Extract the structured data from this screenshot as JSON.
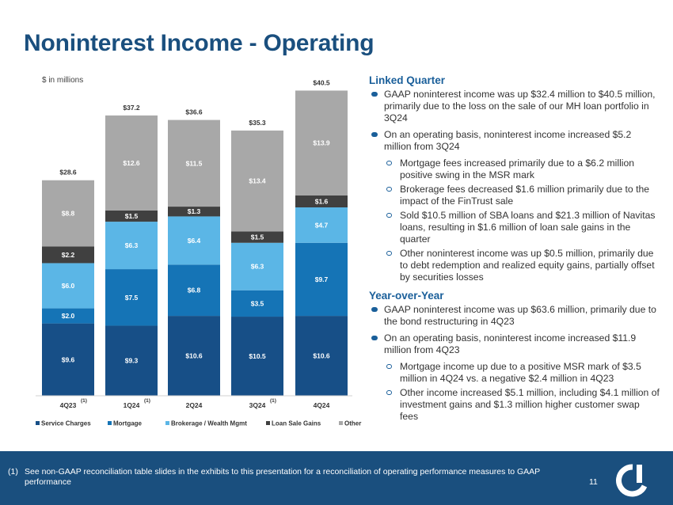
{
  "title": "Noninterest Income - Operating",
  "chart_data": {
    "type": "bar",
    "stacked": true,
    "units_label": "$ in millions",
    "categories": [
      "4Q23",
      "1Q24",
      "2Q24",
      "3Q24",
      "4Q24"
    ],
    "category_notes": [
      "(1)",
      "(1)",
      "",
      "(1)",
      ""
    ],
    "totals": [
      "$28.6",
      "$37.2",
      "$36.6",
      "$35.3",
      "$40.5"
    ],
    "series": [
      {
        "name": "Service Charges",
        "color": "#174f87",
        "values": [
          9.6,
          9.3,
          10.6,
          10.5,
          10.6
        ],
        "labels": [
          "$9.6",
          "$9.3",
          "$10.6",
          "$10.5",
          "$10.6"
        ],
        "label_color": "#ffffff"
      },
      {
        "name": "Mortgage",
        "color": "#1574b6",
        "values": [
          2.0,
          7.5,
          6.8,
          3.5,
          9.7
        ],
        "labels": [
          "$2.0",
          "$7.5",
          "$6.8",
          "$3.5",
          "$9.7"
        ],
        "label_color": "#ffffff"
      },
      {
        "name": "Brokerage / Wealth Mgmt",
        "color": "#5bb6e6",
        "values": [
          6.0,
          6.3,
          6.4,
          6.3,
          4.7
        ],
        "labels": [
          "$6.0",
          "$6.3",
          "$6.4",
          "$6.3",
          "$4.7"
        ],
        "label_color": "#ffffff"
      },
      {
        "name": "Loan Sale Gains",
        "color": "#404040",
        "values": [
          2.2,
          1.5,
          1.3,
          1.5,
          1.6
        ],
        "labels": [
          "$2.2",
          "$1.5",
          "$1.3",
          "$1.5",
          "$1.6"
        ],
        "label_color": "#ffffff"
      },
      {
        "name": "Other",
        "color": "#a8a8a8",
        "values": [
          8.8,
          12.6,
          11.5,
          13.4,
          13.9
        ],
        "labels": [
          "$8.8",
          "$12.6",
          "$11.5",
          "$13.4",
          "$13.9"
        ],
        "label_color": "#ffffff"
      }
    ],
    "legend_position": "bottom",
    "grid": false
  },
  "commentary": {
    "linked_quarter": {
      "heading": "Linked Quarter",
      "b1": "GAAP noninterest income was up $32.4 million to $40.5 million, primarily due to the loss on the sale of our MH loan portfolio in 3Q24",
      "b2": "On an operating basis, noninterest income increased $5.2 million from 3Q24",
      "b2_s1": "Mortgage fees increased primarily due to a $6.2 million positive swing in the MSR mark",
      "b2_s2": "Brokerage fees decreased $1.6 million primarily due to the impact of the FinTrust sale",
      "b2_s3": "Sold $10.5 million of SBA loans and $21.3 million of Navitas loans, resulting in $1.6 million of loan sale gains in the quarter",
      "b2_s4": "Other noninterest income was up $0.5 million, primarily due to debt redemption and realized equity gains, partially offset by securities losses"
    },
    "year_over_year": {
      "heading": "Year-over-Year",
      "b1": "GAAP noninterest income was up $63.6 million, primarily due to the bond restructuring in 4Q23",
      "b2": "On an operating basis, noninterest income increased $11.9 million from 4Q23",
      "b2_s1": "Mortgage income up due to a positive MSR mark of $3.5 million in 4Q24 vs. a negative $2.4 million in 4Q23",
      "b2_s2": "Other income increased $5.1 million, including $4.1 million of investment gains and $1.3 million higher customer swap fees"
    }
  },
  "footnote": {
    "marker": "(1)",
    "text": "See non-GAAP reconciliation table slides in the exhibits to this presentation for a reconciliation of operating performance measures to GAAP performance"
  },
  "page_number": "11",
  "colors": {
    "brand": "#1a4f7e",
    "accent": "#1a5f9a"
  }
}
